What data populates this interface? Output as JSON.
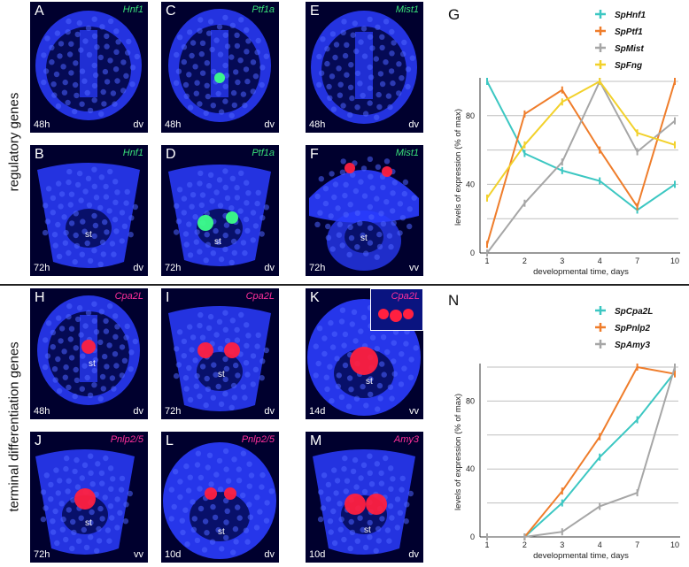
{
  "side_labels": {
    "top": "regulatory genes",
    "bottom": "terminal differentiation genes"
  },
  "colors": {
    "green_label": "#39e07a",
    "magenta_label": "#ff2f9b",
    "nuclei": "#2a3cff",
    "signal_green": "#3cff8a",
    "signal_red": "#ff2040"
  },
  "panels": [
    {
      "letter": "A",
      "gene": "Hnf1",
      "stage": "48h",
      "view": "dv",
      "label_color": "green"
    },
    {
      "letter": "C",
      "gene": "Ptf1a",
      "stage": "48h",
      "view": "dv",
      "label_color": "green"
    },
    {
      "letter": "E",
      "gene": "Mist1",
      "stage": "48h",
      "view": "dv",
      "label_color": "green"
    },
    {
      "letter": "B",
      "gene": "Hnf1",
      "stage": "72h",
      "view": "dv",
      "st": "st",
      "label_color": "green"
    },
    {
      "letter": "D",
      "gene": "Ptf1a",
      "stage": "72h",
      "view": "dv",
      "st": "st",
      "label_color": "green"
    },
    {
      "letter": "F",
      "gene": "Mist1",
      "stage": "72h",
      "view": "vv",
      "st": "st",
      "label_color": "green"
    },
    {
      "letter": "H",
      "gene": "Cpa2L",
      "stage": "48h",
      "view": "dv",
      "st": "st",
      "label_color": "magenta"
    },
    {
      "letter": "I",
      "gene": "Cpa2L",
      "stage": "72h",
      "view": "dv",
      "st": "st",
      "label_color": "magenta"
    },
    {
      "letter": "K",
      "gene": "",
      "inset_gene": "Cpa2L",
      "stage": "14d",
      "view": "vv",
      "st": "st",
      "label_color": "magenta"
    },
    {
      "letter": "J",
      "gene": "Pnlp2/5",
      "stage": "72h",
      "view": "vv",
      "st": "st",
      "label_color": "magenta"
    },
    {
      "letter": "L",
      "gene": "Pnlp2/5",
      "stage": "10d",
      "view": "dv",
      "st": "st",
      "label_color": "magenta"
    },
    {
      "letter": "M",
      "gene": "Amy3",
      "stage": "10d",
      "view": "dv",
      "st": "st",
      "label_color": "magenta"
    }
  ],
  "chart_data": [
    {
      "panel_letter": "G",
      "type": "line",
      "x": [
        "1",
        "2",
        "3",
        "4",
        "7",
        "10"
      ],
      "xlabel": "developmental time, days",
      "ylabel": "levels of expression (% of max)",
      "yticks": [
        "0",
        "40",
        "80"
      ],
      "ylim": [
        0,
        100
      ],
      "grid": true,
      "legend_position": "top-right",
      "series": [
        {
          "name": "SpHnf1",
          "color": "#3cc7c2",
          "values": [
            100,
            58,
            48,
            42,
            25,
            40
          ]
        },
        {
          "name": "SpPtf1",
          "color": "#ef7d2b",
          "values": [
            5,
            81,
            95,
            60,
            27,
            100
          ]
        },
        {
          "name": "SpMist",
          "color": "#a6a6a6",
          "values": [
            0,
            29,
            53,
            100,
            59,
            77
          ]
        },
        {
          "name": "SpFng",
          "color": "#f2d12b",
          "values": [
            32,
            63,
            88,
            100,
            70,
            63
          ]
        }
      ]
    },
    {
      "panel_letter": "N",
      "type": "line",
      "x": [
        "1",
        "2",
        "3",
        "4",
        "7",
        "10"
      ],
      "xlabel": "developmental time, days",
      "ylabel": "levels of expression (% of max)",
      "yticks": [
        "0",
        "40",
        "80"
      ],
      "ylim": [
        0,
        100
      ],
      "grid": true,
      "legend_position": "top-right",
      "series": [
        {
          "name": "SpCpa2L",
          "color": "#3cc7c2",
          "values": [
            0,
            0,
            20,
            47,
            69,
            97
          ]
        },
        {
          "name": "SpPnlp2",
          "color": "#ef7d2b",
          "values": [
            0,
            0,
            27,
            59,
            100,
            96
          ]
        },
        {
          "name": "SpAmy3",
          "color": "#a6a6a6",
          "values": [
            0,
            0,
            3,
            18,
            26,
            100
          ]
        }
      ]
    }
  ]
}
